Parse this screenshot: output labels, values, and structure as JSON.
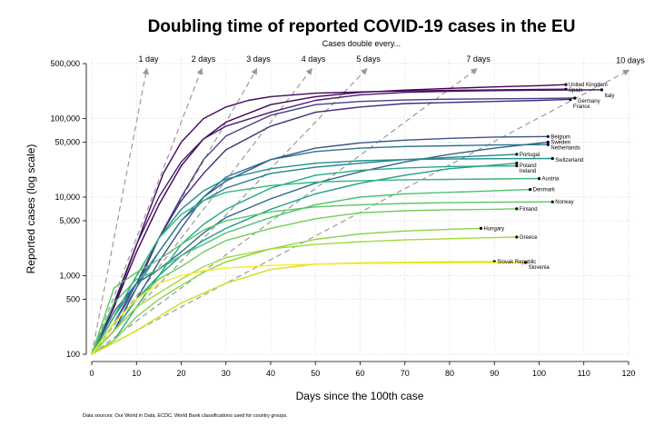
{
  "chart_data": {
    "type": "line",
    "title": "Doubling time of reported COVID-19 cases in the EU",
    "subtitle": "Cases double every...",
    "xlabel": "Days since the 100th case",
    "ylabel": "Reported cases (log scale)",
    "source": "Data sources: Our World in Data, ECDC. World Bank classifications used for country groups.",
    "x_scale": "linear",
    "y_scale": "log",
    "xlim": [
      0,
      120
    ],
    "ylim": [
      100,
      500000
    ],
    "x_ticks": [
      0,
      10,
      20,
      30,
      40,
      50,
      60,
      70,
      80,
      90,
      100,
      110,
      120
    ],
    "y_ticks": [
      {
        "value": 100,
        "label": "100"
      },
      {
        "value": 500,
        "label": "500"
      },
      {
        "value": 1000,
        "label": "1,000"
      },
      {
        "value": 5000,
        "label": "5,000"
      },
      {
        "value": 10000,
        "label": "10,000"
      },
      {
        "value": 50000,
        "label": "50,000"
      },
      {
        "value": 100000,
        "label": "100,000"
      },
      {
        "value": 500000,
        "label": "500,000"
      }
    ],
    "grid": true,
    "doubling_guides": [
      {
        "days": 1,
        "label": "1 day"
      },
      {
        "days": 2,
        "label": "2 days"
      },
      {
        "days": 3,
        "label": "3 days"
      },
      {
        "days": 4,
        "label": "4 days"
      },
      {
        "days": 5,
        "label": "5 days"
      },
      {
        "days": 7,
        "label": "7 days"
      },
      {
        "days": 10,
        "label": "10 days"
      }
    ],
    "series": [
      {
        "name": "United Kingdom",
        "color": "#440154",
        "x": [
          0,
          5,
          10,
          15,
          20,
          25,
          30,
          40,
          50,
          60,
          70,
          80,
          90,
          100,
          106
        ],
        "y": [
          100,
          400,
          2000,
          8000,
          25000,
          55000,
          90000,
          150000,
          190000,
          215000,
          230000,
          242000,
          252000,
          262000,
          270000
        ]
      },
      {
        "name": "Spain",
        "color": "#46085c",
        "x": [
          0,
          4,
          8,
          12,
          16,
          20,
          25,
          30,
          35,
          40,
          50,
          60,
          70,
          80,
          90,
          100,
          106
        ],
        "y": [
          100,
          300,
          1200,
          5000,
          20000,
          50000,
          100000,
          140000,
          170000,
          190000,
          210000,
          218000,
          224000,
          228000,
          231000,
          234000,
          236000
        ]
      },
      {
        "name": "Italy",
        "color": "#481a6c",
        "x": [
          0,
          5,
          10,
          15,
          20,
          25,
          30,
          40,
          50,
          60,
          70,
          80,
          90,
          100,
          110,
          114
        ],
        "y": [
          100,
          450,
          2500,
          10000,
          28000,
          55000,
          80000,
          120000,
          170000,
          200000,
          215000,
          222000,
          226000,
          229000,
          231000,
          232000
        ]
      },
      {
        "name": "France",
        "color": "#472a7a",
        "x": [
          0,
          5,
          10,
          15,
          20,
          25,
          30,
          40,
          50,
          60,
          70,
          80,
          90,
          100,
          107
        ],
        "y": [
          100,
          250,
          800,
          3000,
          9000,
          20000,
          40000,
          80000,
          120000,
          140000,
          155000,
          160000,
          165000,
          170000,
          175000
        ]
      },
      {
        "name": "Germany",
        "color": "#433e85",
        "x": [
          0,
          5,
          10,
          15,
          20,
          25,
          30,
          40,
          50,
          60,
          70,
          80,
          90,
          100,
          108
        ],
        "y": [
          100,
          200,
          700,
          3000,
          10000,
          30000,
          60000,
          110000,
          150000,
          165000,
          172000,
          176000,
          178000,
          180000,
          182000
        ]
      },
      {
        "name": "Belgium",
        "color": "#3b528b",
        "x": [
          0,
          5,
          10,
          15,
          20,
          25,
          30,
          40,
          50,
          60,
          70,
          80,
          90,
          102
        ],
        "y": [
          100,
          200,
          500,
          1500,
          4000,
          10000,
          16000,
          30000,
          42000,
          49000,
          53000,
          56000,
          58000,
          59000
        ]
      },
      {
        "name": "Sweden",
        "color": "#32648e",
        "x": [
          0,
          5,
          10,
          15,
          20,
          25,
          30,
          40,
          50,
          60,
          70,
          80,
          90,
          102
        ],
        "y": [
          100,
          350,
          800,
          1200,
          2000,
          3500,
          5500,
          9500,
          15000,
          21000,
          28000,
          35000,
          42000,
          50000
        ]
      },
      {
        "name": "Netherlands",
        "color": "#2c728e",
        "x": [
          0,
          5,
          10,
          15,
          20,
          25,
          30,
          40,
          50,
          60,
          70,
          80,
          90,
          102
        ],
        "y": [
          100,
          300,
          800,
          2000,
          5000,
          10000,
          18000,
          30000,
          38000,
          42000,
          44000,
          45000,
          46000,
          46500
        ]
      },
      {
        "name": "Portugal",
        "color": "#26828e",
        "x": [
          0,
          5,
          10,
          15,
          20,
          25,
          30,
          40,
          50,
          60,
          70,
          80,
          95
        ],
        "y": [
          100,
          250,
          700,
          2000,
          5000,
          9000,
          13000,
          20000,
          24000,
          27000,
          30000,
          32000,
          35000
        ]
      },
      {
        "name": "Switzerland",
        "color": "#21918c",
        "x": [
          0,
          5,
          10,
          15,
          20,
          25,
          30,
          40,
          50,
          60,
          70,
          80,
          90,
          103
        ],
        "y": [
          100,
          300,
          1000,
          3000,
          7000,
          12000,
          17000,
          23000,
          27000,
          29000,
          30000,
          30500,
          30800,
          31000
        ]
      },
      {
        "name": "Poland",
        "color": "#1f9e89",
        "x": [
          0,
          5,
          10,
          15,
          20,
          25,
          30,
          40,
          50,
          60,
          70,
          80,
          95
        ],
        "y": [
          100,
          200,
          500,
          1000,
          1800,
          2800,
          4000,
          7000,
          11000,
          15000,
          19000,
          23000,
          27000
        ]
      },
      {
        "name": "Ireland",
        "color": "#25ab82",
        "x": [
          0,
          5,
          10,
          15,
          20,
          25,
          30,
          40,
          50,
          60,
          70,
          80,
          95
        ],
        "y": [
          100,
          150,
          400,
          1000,
          2500,
          4500,
          7000,
          13000,
          19000,
          22000,
          23500,
          24500,
          25000
        ]
      },
      {
        "name": "Austria",
        "color": "#35b779",
        "x": [
          0,
          5,
          10,
          15,
          20,
          25,
          30,
          40,
          50,
          60,
          70,
          80,
          90,
          100
        ],
        "y": [
          100,
          300,
          1000,
          3000,
          6000,
          9000,
          11500,
          14000,
          15500,
          16200,
          16600,
          16800,
          17000,
          17200
        ]
      },
      {
        "name": "Denmark",
        "color": "#4ac16d",
        "x": [
          0,
          5,
          10,
          15,
          20,
          25,
          30,
          40,
          50,
          60,
          70,
          80,
          90,
          98
        ],
        "y": [
          100,
          450,
          900,
          1200,
          1800,
          2500,
          3500,
          5500,
          8000,
          10000,
          11000,
          11500,
          12000,
          12500
        ]
      },
      {
        "name": "Norway",
        "color": "#58c765",
        "x": [
          0,
          5,
          10,
          15,
          20,
          25,
          30,
          40,
          50,
          60,
          70,
          80,
          90,
          103
        ],
        "y": [
          100,
          700,
          1100,
          1600,
          2500,
          3800,
          5000,
          6500,
          7500,
          8000,
          8300,
          8500,
          8600,
          8700
        ]
      },
      {
        "name": "Finland",
        "color": "#6ece58",
        "x": [
          0,
          5,
          10,
          15,
          20,
          25,
          30,
          40,
          50,
          60,
          70,
          80,
          90,
          95
        ],
        "y": [
          100,
          250,
          500,
          900,
          1300,
          2000,
          2800,
          4000,
          5300,
          6300,
          6700,
          6900,
          7000,
          7100
        ]
      },
      {
        "name": "Hungary",
        "color": "#89d548",
        "x": [
          0,
          5,
          10,
          15,
          20,
          25,
          30,
          40,
          50,
          60,
          70,
          80,
          87
        ],
        "y": [
          100,
          150,
          300,
          500,
          750,
          1100,
          1500,
          2200,
          2900,
          3400,
          3700,
          3900,
          4000
        ]
      },
      {
        "name": "Greece",
        "color": "#a0da39",
        "x": [
          0,
          5,
          10,
          15,
          20,
          25,
          30,
          40,
          50,
          60,
          70,
          80,
          90,
          95
        ],
        "y": [
          100,
          200,
          400,
          600,
          900,
          1300,
          1700,
          2200,
          2500,
          2700,
          2850,
          2950,
          3050,
          3100
        ]
      },
      {
        "name": "Slovak Republic",
        "color": "#d0e11c",
        "x": [
          0,
          5,
          10,
          15,
          20,
          25,
          30,
          40,
          50,
          60,
          70,
          80,
          90
        ],
        "y": [
          100,
          140,
          200,
          300,
          450,
          600,
          800,
          1200,
          1400,
          1450,
          1480,
          1500,
          1510
        ]
      },
      {
        "name": "Slovenia",
        "color": "#fde725",
        "x": [
          0,
          5,
          10,
          15,
          20,
          25,
          30,
          40,
          50,
          60,
          70,
          80,
          90,
          97
        ],
        "y": [
          100,
          250,
          500,
          800,
          1000,
          1150,
          1250,
          1350,
          1400,
          1430,
          1450,
          1460,
          1465,
          1470
        ]
      }
    ]
  }
}
